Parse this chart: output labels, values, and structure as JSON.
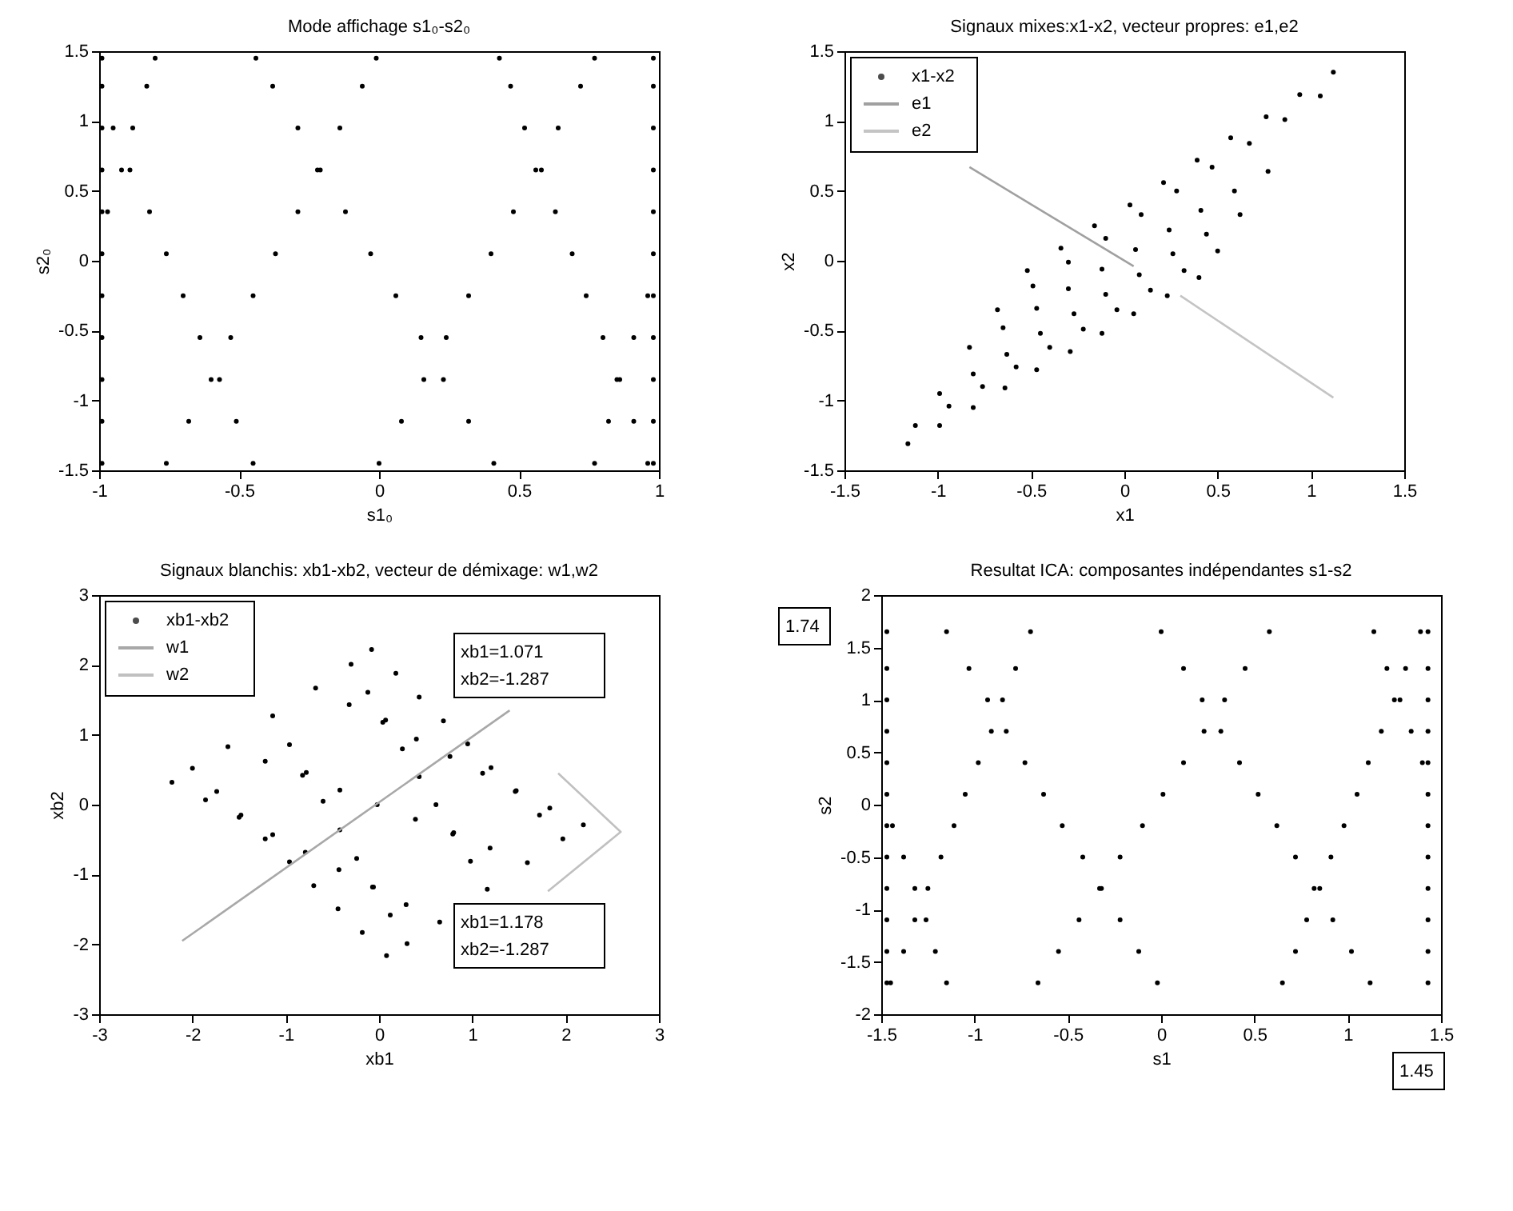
{
  "chart_data": [
    {
      "type": "scatter",
      "title": "Mode affichage s1₀-s2₀",
      "xlabel": "s1₀",
      "ylabel": "s2₀",
      "xlim": [
        -1,
        1
      ],
      "ylim": [
        -1.5,
        1.5
      ],
      "xticks": [
        -1,
        -0.5,
        0,
        0.5,
        1
      ],
      "yticks": [
        -1.5,
        -1,
        -0.5,
        0,
        0.5,
        1,
        1.5
      ],
      "series": [
        {
          "color": "#000000",
          "marker": "circle",
          "x": [
            -0.76,
            -0.68,
            -0.6,
            -0.53,
            -0.45,
            -0.37,
            -0.29,
            -0.22,
            -0.14,
            -0.06,
            -0.01,
            0.0,
            0.08,
            0.16,
            0.24,
            0.32,
            0.4,
            0.48,
            0.56,
            0.64,
            0.72,
            0.77,
            0.41,
            0.32,
            0.23,
            0.15,
            0.06,
            -0.03,
            -0.12,
            -0.21,
            -0.29,
            -0.38,
            -0.44,
            0.96,
            0.91,
            0.85,
            0.8,
            0.74,
            0.69,
            0.63,
            0.58,
            0.52,
            0.47,
            0.43,
            -0.45,
            -0.51,
            -0.57,
            -0.64,
            -0.7,
            -0.76,
            -0.82,
            -0.89,
            -0.95,
            -0.97,
            -0.92,
            -0.88,
            -0.83,
            -0.8,
            0.77,
            0.82,
            0.86,
            0.91,
            0.96,
            -0.99,
            -0.99,
            -0.99,
            -0.99,
            -0.99,
            -0.99,
            -0.99,
            -0.99,
            -0.99,
            -0.99,
            -0.99,
            0.98,
            0.98,
            0.98,
            0.98,
            0.98,
            0.98,
            0.98,
            0.98,
            0.98,
            0.98,
            0.98
          ],
          "values": [
            -1.45,
            -1.15,
            -0.85,
            -0.55,
            -0.25,
            0.05,
            0.35,
            0.65,
            0.95,
            1.25,
            1.45,
            -1.45,
            -1.15,
            -0.85,
            -0.55,
            -0.25,
            0.05,
            0.35,
            0.65,
            0.95,
            1.25,
            1.45,
            -1.45,
            -1.15,
            -0.85,
            -0.55,
            -0.25,
            0.05,
            0.35,
            0.65,
            0.95,
            1.25,
            1.45,
            -1.45,
            -1.15,
            -0.85,
            -0.55,
            -0.25,
            0.05,
            0.35,
            0.65,
            0.95,
            1.25,
            1.45,
            -1.45,
            -1.15,
            -0.85,
            -0.55,
            -0.25,
            0.05,
            0.35,
            0.65,
            0.95,
            0.35,
            0.65,
            0.95,
            1.25,
            1.45,
            -1.45,
            -1.15,
            -0.85,
            -0.55,
            -0.25,
            -1.45,
            -1.15,
            -0.85,
            -0.55,
            -0.25,
            0.05,
            0.35,
            0.65,
            0.95,
            1.25,
            1.45,
            -1.45,
            -1.15,
            -0.85,
            -0.55,
            -0.25,
            0.05,
            0.35,
            0.65,
            0.95,
            1.25,
            1.45
          ]
        }
      ]
    },
    {
      "type": "scatter",
      "title": "Signaux mixes:x1-x2, vecteur propres: e1,e2",
      "xlabel": "x1",
      "ylabel": "x2",
      "xlim": [
        -1.5,
        1.5
      ],
      "ylim": [
        -1.5,
        1.5
      ],
      "xticks": [
        -1.5,
        -1,
        -0.5,
        0,
        0.5,
        1,
        1.5
      ],
      "yticks": [
        -1.5,
        -1,
        -0.5,
        0,
        0.5,
        1,
        1.5
      ],
      "legend": "top left",
      "series": [
        {
          "name": "x1-x2",
          "color": "#000000",
          "marker": "circle",
          "x": [
            -0.52,
            -0.34,
            -0.16,
            0.03,
            0.21,
            0.39,
            0.57,
            0.76,
            0.94,
            1.12,
            -0.68,
            -0.49,
            -0.3,
            -0.1,
            0.09,
            0.28,
            0.47,
            0.67,
            0.86,
            1.05,
            -0.83,
            -0.65,
            -0.47,
            -0.3,
            -0.12,
            0.06,
            0.24,
            0.41,
            0.59,
            0.77,
            -0.99,
            -0.81,
            -0.63,
            -0.45,
            -0.27,
            -0.1,
            0.08,
            0.26,
            0.44,
            0.62,
            -1.12,
            -0.94,
            -0.76,
            -0.58,
            -0.4,
            -0.22,
            -0.04,
            0.14,
            0.32,
            0.5,
            -1.16,
            -0.99,
            -0.81,
            -0.64,
            -0.47,
            -0.29,
            -0.12,
            0.05,
            0.23,
            0.4
          ],
          "values": [
            -0.07,
            0.09,
            0.25,
            0.4,
            0.56,
            0.72,
            0.88,
            1.03,
            1.19,
            1.35,
            -0.35,
            -0.18,
            -0.01,
            0.16,
            0.33,
            0.5,
            0.67,
            0.84,
            1.01,
            1.18,
            -0.62,
            -0.48,
            -0.34,
            -0.2,
            -0.06,
            0.08,
            0.22,
            0.36,
            0.5,
            0.64,
            -0.95,
            -0.81,
            -0.67,
            -0.52,
            -0.38,
            -0.24,
            -0.1,
            0.05,
            0.19,
            0.33,
            -1.18,
            -1.04,
            -0.9,
            -0.76,
            -0.62,
            -0.49,
            -0.35,
            -0.21,
            -0.07,
            0.07,
            -1.31,
            -1.18,
            -1.05,
            -0.91,
            -0.78,
            -0.65,
            -0.52,
            -0.38,
            -0.25,
            -0.12
          ]
        },
        {
          "name": "e1",
          "type": "line",
          "color": "#a0a0a0",
          "x": [
            -0.83,
            0.05
          ],
          "values": [
            0.67,
            -0.04
          ]
        },
        {
          "name": "e2",
          "type": "line",
          "color": "#c4c4c4",
          "x": [
            0.3,
            1.12
          ],
          "values": [
            -0.25,
            -0.98
          ]
        }
      ]
    },
    {
      "type": "scatter",
      "title": "Signaux blanchis: xb1-xb2, vecteur de démixage: w1,w2",
      "xlabel": "xb1",
      "ylabel": "xb2",
      "xlim": [
        -3,
        3
      ],
      "ylim": [
        -3,
        3
      ],
      "xticks": [
        -3,
        -2,
        -1,
        0,
        1,
        2,
        3
      ],
      "yticks": [
        -3,
        -2,
        -1,
        0,
        1,
        2,
        3
      ],
      "legend": "top left",
      "annotations": [
        "xb1=1.071",
        "xb2=-1.287",
        "xb1=1.178",
        "xb2=-1.287"
      ],
      "series": [
        {
          "name": "xb1-xb2",
          "color": "#000000",
          "marker": "circle",
          "x": [
            -2.22,
            -1.86,
            -1.5,
            -1.14,
            -0.79,
            -0.43,
            -0.07,
            0.29,
            0.65,
            -2.0,
            -1.74,
            -1.48,
            -1.22,
            -0.96,
            -0.7,
            -0.44,
            -0.18,
            0.08,
            -1.62,
            -1.22,
            -0.82,
            -0.42,
            -0.02,
            0.39,
            0.79,
            1.19,
            1.59,
            -1.14,
            -0.96,
            -0.78,
            -0.6,
            -0.42,
            -0.24,
            -0.06,
            0.12,
            0.3,
            -0.68,
            -0.32,
            0.04,
            0.4,
            0.76,
            1.11,
            1.47,
            1.83,
            2.19,
            -0.3,
            -0.12,
            0.07,
            0.25,
            0.43,
            0.61,
            0.8,
            0.98,
            1.16,
            -0.08,
            0.18,
            0.43,
            0.69,
            0.95,
            1.2,
            1.46,
            1.72,
            1.97
          ],
          "values": [
            0.32,
            0.07,
            -0.18,
            -0.43,
            -0.68,
            -0.93,
            -1.18,
            -1.43,
            -1.68,
            0.52,
            0.19,
            -0.15,
            -0.49,
            -0.82,
            -1.16,
            -1.49,
            -1.83,
            -2.16,
            0.83,
            0.62,
            0.42,
            0.21,
            0.0,
            -0.21,
            -0.42,
            -0.62,
            -0.83,
            1.27,
            0.86,
            0.46,
            0.05,
            -0.36,
            -0.77,
            -1.18,
            -1.58,
            -1.99,
            1.67,
            1.43,
            1.18,
            0.94,
            0.69,
            0.45,
            0.2,
            -0.05,
            -0.29,
            2.01,
            1.61,
            1.21,
            0.8,
            0.4,
            0.0,
            -0.4,
            -0.81,
            -1.21,
            2.22,
            1.88,
            1.54,
            1.2,
            0.87,
            0.53,
            0.19,
            -0.15,
            -0.49
          ]
        },
        {
          "name": "w1",
          "type": "line",
          "color": "#a8a8a8",
          "x": [
            -2.11,
            1.4
          ],
          "values": [
            -1.95,
            1.35
          ]
        },
        {
          "name": "w2",
          "type": "line",
          "color": "#c0c0c0",
          "x": [
            1.92,
            2.59,
            1.81
          ],
          "values": [
            0.45,
            -0.39,
            -1.24
          ]
        }
      ]
    },
    {
      "type": "scatter",
      "title": "Resultat ICA: composantes indépendantes s1-s2",
      "xlabel": "s1",
      "ylabel": "s2",
      "xlim": [
        -1.5,
        1.5
      ],
      "ylim": [
        -2,
        2
      ],
      "xticks": [
        -1.5,
        -1,
        -0.5,
        0,
        0.5,
        1,
        1.5
      ],
      "yticks": [
        -2,
        -1.5,
        -1,
        -0.5,
        0,
        0.5,
        1,
        1.5,
        2
      ],
      "annotations": [
        "1.74",
        "1.45"
      ],
      "series": [
        {
          "color": "#000000",
          "marker": "circle",
          "x": [
            -1.45,
            -1.38,
            -1.32,
            -1.25,
            -1.18,
            -1.11,
            -1.05,
            -0.98,
            -0.91,
            -0.85,
            -0.78,
            -0.7,
            -0.66,
            -0.55,
            -0.44,
            -0.33,
            -0.22,
            -0.1,
            0.01,
            0.12,
            0.23,
            0.34,
            0.45,
            0.58,
            0.65,
            0.72,
            0.78,
            0.85,
            0.91,
            0.98,
            1.05,
            1.11,
            1.18,
            1.25,
            1.31,
            1.39,
            -0.02,
            -0.12,
            -0.22,
            -0.32,
            -0.42,
            -0.53,
            -0.63,
            -0.73,
            -0.83,
            -0.93,
            -1.03,
            -1.15,
            1.12,
            1.02,
            0.92,
            0.82,
            0.72,
            0.62,
            0.52,
            0.42,
            0.32,
            0.22,
            0.12,
            0.0,
            1.4,
            1.34,
            1.28,
            1.21,
            1.14,
            -1.44,
            -1.38,
            -1.32,
            -1.26,
            -1.21,
            -1.15,
            -1.47,
            -1.47,
            -1.47,
            -1.47,
            -1.47,
            -1.47,
            -1.47,
            -1.47,
            -1.47,
            -1.47,
            -1.47,
            -1.47,
            1.43,
            1.43,
            1.43,
            1.43,
            1.43,
            1.43,
            1.43,
            1.43,
            1.43,
            1.43,
            1.43,
            1.43
          ],
          "values": [
            -1.7,
            -1.4,
            -1.1,
            -0.8,
            -0.5,
            -0.2,
            0.1,
            0.4,
            0.7,
            1.0,
            1.3,
            1.65,
            -1.7,
            -1.4,
            -1.1,
            -0.8,
            -0.5,
            -0.2,
            0.1,
            0.4,
            0.7,
            1.0,
            1.3,
            1.65,
            -1.7,
            -1.4,
            -1.1,
            -0.8,
            -0.5,
            -0.2,
            0.1,
            0.4,
            0.7,
            1.0,
            1.3,
            1.65,
            -1.7,
            -1.4,
            -1.1,
            -0.8,
            -0.5,
            -0.2,
            0.1,
            0.4,
            0.7,
            1.0,
            1.3,
            1.65,
            -1.7,
            -1.4,
            -1.1,
            -0.8,
            -0.5,
            -0.2,
            0.1,
            0.4,
            0.7,
            1.0,
            1.3,
            1.65,
            0.4,
            0.7,
            1.0,
            1.3,
            1.65,
            -0.2,
            -0.5,
            -0.8,
            -1.1,
            -1.4,
            -1.7,
            -1.7,
            -1.4,
            -1.1,
            -0.8,
            -0.5,
            -0.2,
            0.1,
            0.4,
            0.7,
            1.0,
            1.3,
            1.65,
            -1.7,
            -1.4,
            -1.1,
            -0.8,
            -0.5,
            -0.2,
            0.1,
            0.4,
            0.7,
            1.0,
            1.3,
            1.65
          ]
        }
      ]
    }
  ]
}
